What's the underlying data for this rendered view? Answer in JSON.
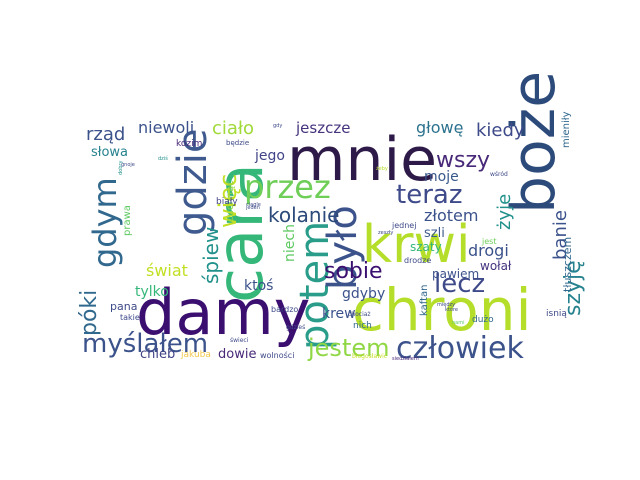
{
  "words": [
    {
      "text": "damy",
      "color": "#3b0f70"
    },
    {
      "text": "chroni",
      "color": "#b5de2b"
    },
    {
      "text": "mnie",
      "color": "#2e1a48"
    },
    {
      "text": "boże",
      "color": "#2c4a7a"
    },
    {
      "text": "cara",
      "color": "#35b779"
    },
    {
      "text": "krwi",
      "color": "#b5de2b"
    },
    {
      "text": "gdzie",
      "color": "#3e5a8e"
    },
    {
      "text": "potem",
      "color": "#2a9d8a"
    },
    {
      "text": "było",
      "color": "#3b528b"
    },
    {
      "text": "przez",
      "color": "#6ece58"
    },
    {
      "text": "gdym",
      "color": "#31688e"
    },
    {
      "text": "człowiek",
      "color": "#3b528b"
    },
    {
      "text": "myślałem",
      "color": "#3b528b"
    },
    {
      "text": "jestem",
      "color": "#8fd744"
    },
    {
      "text": "teraz",
      "color": "#3e4a89"
    },
    {
      "text": "lecz",
      "color": "#3e4a89"
    },
    {
      "text": "sobie",
      "color": "#3b0f70"
    },
    {
      "text": "wszy",
      "color": "#482878"
    },
    {
      "text": "kolanie",
      "color": "#2c4a7a"
    },
    {
      "text": "póki",
      "color": "#31688e"
    },
    {
      "text": "więc",
      "color": "#c2df23"
    },
    {
      "text": "śpiew",
      "color": "#21918c"
    },
    {
      "text": "szyję",
      "color": "#26828e"
    },
    {
      "text": "rząd",
      "color": "#3b528b"
    },
    {
      "text": "ciało",
      "color": "#a0da39"
    },
    {
      "text": "kiedy",
      "color": "#3e4a89"
    },
    {
      "text": "głowę",
      "color": "#2c728e"
    },
    {
      "text": "jeszcze",
      "color": "#46337e"
    },
    {
      "text": "niewoli",
      "color": "#3b528b"
    },
    {
      "text": "złotem",
      "color": "#3b528b"
    },
    {
      "text": "żyje",
      "color": "#21918c"
    },
    {
      "text": "banie",
      "color": "#3b528b"
    },
    {
      "text": "drogi",
      "color": "#3b528b"
    },
    {
      "text": "moje",
      "color": "#38588c"
    },
    {
      "text": "jego",
      "color": "#414487"
    },
    {
      "text": "słowa",
      "color": "#26828e"
    },
    {
      "text": "świat",
      "color": "#c2df23"
    },
    {
      "text": "niech",
      "color": "#5ec962"
    },
    {
      "text": "tylko",
      "color": "#35b779"
    },
    {
      "text": "gdyby",
      "color": "#3b528b"
    },
    {
      "text": "krew",
      "color": "#3b528b"
    },
    {
      "text": "szli",
      "color": "#3e5a8e"
    },
    {
      "text": "szaty",
      "color": "#35b779"
    },
    {
      "text": "ktoś",
      "color": "#3b528b"
    },
    {
      "text": "pawiem",
      "color": "#3b528b"
    },
    {
      "text": "kaftan",
      "color": "#31688e"
    },
    {
      "text": "wołał",
      "color": "#46337e"
    },
    {
      "text": "chleb",
      "color": "#414487"
    },
    {
      "text": "dowie",
      "color": "#482878"
    },
    {
      "text": "pana",
      "color": "#3e4a89"
    },
    {
      "text": "tłuszczem",
      "color": "#31688e"
    },
    {
      "text": "mieniły",
      "color": "#31688e"
    },
    {
      "text": "jakuba",
      "color": "#f2c94c"
    },
    {
      "text": "prawa",
      "color": "#5ec962"
    },
    {
      "text": "cuchnąć",
      "color": "#8fd744"
    },
    {
      "text": "biały",
      "color": "#414487"
    },
    {
      "text": "kozim",
      "color": "#482878"
    },
    {
      "text": "takie",
      "color": "#3e4a89"
    },
    {
      "text": "nich",
      "color": "#31688e"
    },
    {
      "text": "jednej",
      "color": "#3e4a89"
    },
    {
      "text": "drodze",
      "color": "#3e4a89"
    },
    {
      "text": "dużo",
      "color": "#31688e"
    },
    {
      "text": "jest",
      "color": "#6ece58"
    },
    {
      "text": "isnią",
      "color": "#3e4a89"
    },
    {
      "text": "będzie",
      "color": "#3e4a89"
    },
    {
      "text": "bardzo",
      "color": "#3e4a89"
    },
    {
      "text": "wolności",
      "color": "#3e4a89"
    },
    {
      "text": "świeci",
      "color": "#3e4a89"
    },
    {
      "text": "błogosławić",
      "color": "#c2df23"
    },
    {
      "text": "siedziałem",
      "color": "#482878"
    },
    {
      "text": "gdzieś",
      "color": "#3e4a89"
    },
    {
      "text": "zeszły",
      "color": "#3e4a89"
    },
    {
      "text": "chociaż",
      "color": "#3e4a89"
    },
    {
      "text": "nami",
      "color": "#5ec962"
    },
    {
      "text": "które",
      "color": "#3e4a89"
    },
    {
      "text": "między",
      "color": "#3e4a89"
    },
    {
      "text": "wśród",
      "color": "#3e4a89"
    },
    {
      "text": "ciągle",
      "color": "#3e4a89"
    },
    {
      "text": "jeden",
      "color": "#3e4a89"
    },
    {
      "text": "gdy",
      "color": "#3e4a89"
    },
    {
      "text": "gnoje",
      "color": "#3e4a89"
    },
    {
      "text": "dobry",
      "color": "#21918c"
    },
    {
      "text": "dziś",
      "color": "#21918c"
    },
    {
      "text": "żeby",
      "color": "#b5de2b"
    }
  ]
}
